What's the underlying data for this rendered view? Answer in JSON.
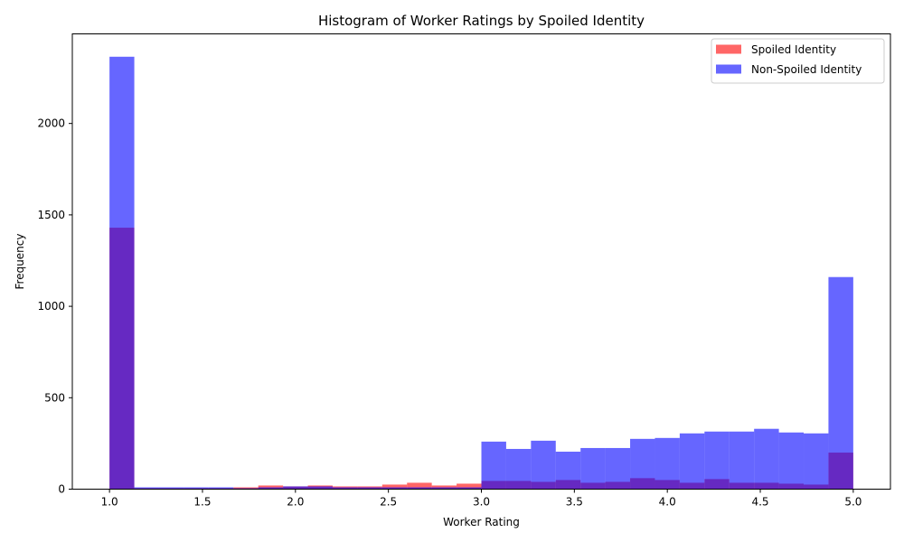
{
  "chart_data": {
    "type": "histogram",
    "title": "Histogram of Worker Ratings by Spoiled Identity",
    "xlabel": "Worker Rating",
    "ylabel": "Frequency",
    "xlim": [
      0.8,
      5.2
    ],
    "ylim": [
      0,
      2490
    ],
    "x_ticks": [
      1.0,
      1.5,
      2.0,
      2.5,
      3.0,
      3.5,
      4.0,
      4.5,
      5.0
    ],
    "x_tick_labels": [
      "1.0",
      "1.5",
      "2.0",
      "2.5",
      "3.0",
      "3.5",
      "4.0",
      "4.5",
      "5.0"
    ],
    "y_ticks": [
      0,
      500,
      1000,
      1500,
      2000
    ],
    "y_tick_labels": [
      "0",
      "500",
      "1000",
      "1500",
      "2000"
    ],
    "bins": {
      "start": 1.0,
      "end": 5.0,
      "count": 30
    },
    "legend_position": "top-right",
    "series": [
      {
        "name": "Spoiled Identity",
        "color": "#ff0000",
        "alpha": 0.6,
        "values": [
          1430,
          5,
          5,
          5,
          5,
          10,
          20,
          15,
          20,
          15,
          15,
          25,
          35,
          20,
          30,
          45,
          45,
          40,
          50,
          35,
          40,
          60,
          50,
          35,
          55,
          35,
          35,
          30,
          25,
          200
        ]
      },
      {
        "name": "Non-Spoiled Identity",
        "color": "#0000ff",
        "alpha": 0.6,
        "values": [
          2365,
          10,
          10,
          10,
          10,
          5,
          10,
          15,
          15,
          10,
          10,
          10,
          10,
          10,
          10,
          260,
          220,
          265,
          205,
          225,
          225,
          275,
          280,
          305,
          315,
          315,
          330,
          310,
          305,
          1160
        ]
      }
    ]
  }
}
